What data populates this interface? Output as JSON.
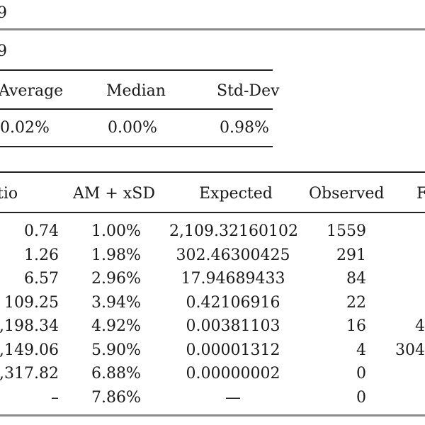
{
  "header": {
    "title_fragment": "9"
  },
  "summary": {
    "label_fragment": "9",
    "columns": [
      "Average",
      "Median",
      "Std-Dev"
    ],
    "columns_display": [
      "Average",
      "Median",
      "Std-Dev"
    ],
    "values": [
      "0.02%",
      "0.00%",
      "0.98%"
    ]
  },
  "main_table": {
    "columns": [
      "tio",
      "AM + xSD",
      "Expected",
      "Observed",
      "F"
    ],
    "rows": [
      {
        "ratio": "0.74",
        "am_xsd": "1.00%",
        "expected": "2,109.32160102",
        "observed": "1559",
        "extra": ""
      },
      {
        "ratio": "1.26",
        "am_xsd": "1.98%",
        "expected": "302.46300425",
        "observed": "291",
        "extra": ""
      },
      {
        "ratio": "6.57",
        "am_xsd": "2.96%",
        "expected": "17.94689433",
        "observed": "84",
        "extra": ""
      },
      {
        "ratio": "109.25",
        "am_xsd": "3.94%",
        "expected": "0.42106916",
        "observed": "22",
        "extra": ""
      },
      {
        "ratio": ",198.34",
        "am_xsd": "4.92%",
        "expected": "0.00381103",
        "observed": "16",
        "extra": "4"
      },
      {
        "ratio": ",149.06",
        "am_xsd": "5.90%",
        "expected": "0.00001312",
        "observed": "4",
        "extra": "304"
      },
      {
        "ratio": ",317.82",
        "am_xsd": "6.88%",
        "expected": "0.00000002",
        "observed": "0",
        "extra": ""
      },
      {
        "ratio": "–",
        "am_xsd": "7.86%",
        "expected": "—",
        "observed": "0",
        "extra": ""
      }
    ]
  }
}
